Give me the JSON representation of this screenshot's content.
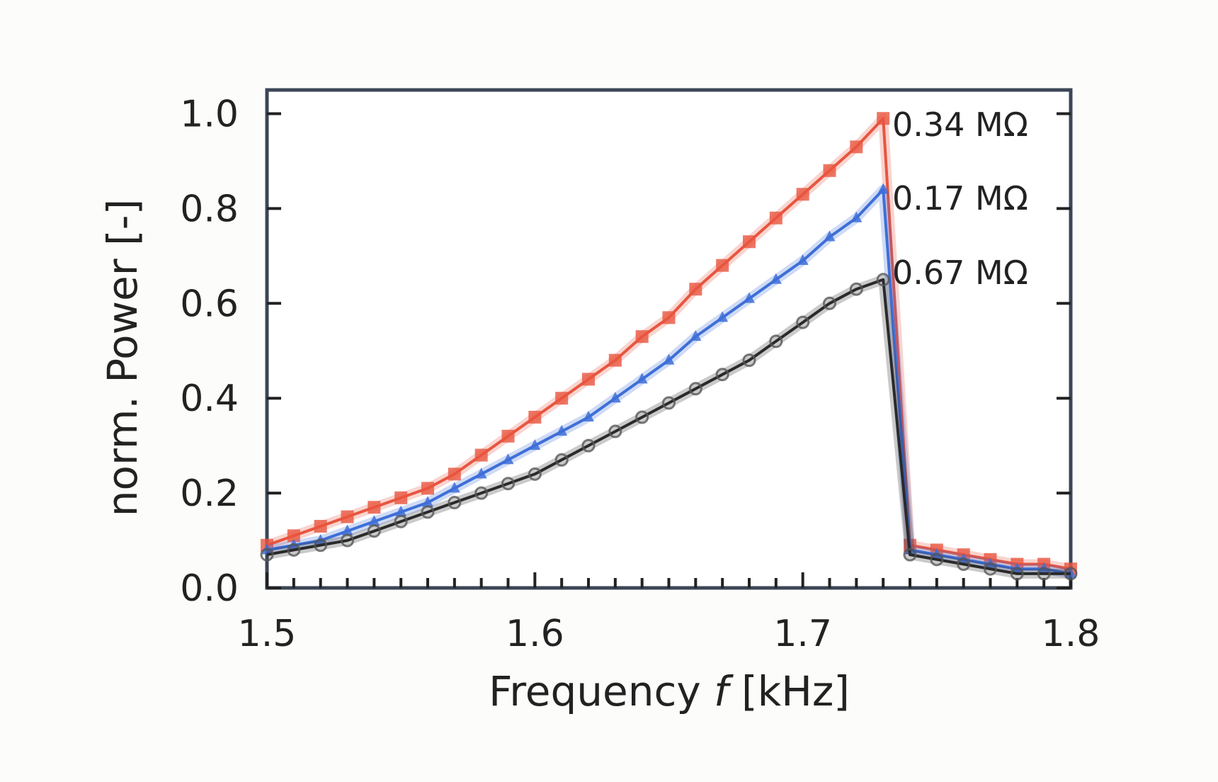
{
  "chart_data": {
    "type": "line",
    "title": "",
    "xlabel_prefix": "Frequency ",
    "xlabel_var": "f",
    "xlabel_unit": " [kHz]",
    "ylabel": "norm. Power [-]",
    "xlim": [
      1.5,
      1.8
    ],
    "ylim": [
      0.0,
      1.05
    ],
    "xticks": [
      1.5,
      1.6,
      1.7,
      1.8
    ],
    "xtick_labels": [
      "1.5",
      "1.6",
      "1.7",
      "1.8"
    ],
    "yticks": [
      0.0,
      0.2,
      0.4,
      0.6,
      0.8,
      1.0
    ],
    "ytick_labels": [
      "0.0",
      "0.2",
      "0.4",
      "0.6",
      "0.8",
      "1.0"
    ],
    "grid": false,
    "legend": "inline labels right of curves",
    "series": [
      {
        "name": "0.34 MΩ",
        "color": "#e8553f",
        "marker": "square",
        "x": [
          1.5,
          1.51,
          1.52,
          1.53,
          1.54,
          1.55,
          1.56,
          1.57,
          1.58,
          1.59,
          1.6,
          1.61,
          1.62,
          1.63,
          1.64,
          1.65,
          1.66,
          1.67,
          1.68,
          1.69,
          1.7,
          1.71,
          1.72,
          1.73,
          1.74,
          1.75,
          1.76,
          1.77,
          1.78,
          1.79,
          1.8
        ],
        "y": [
          0.09,
          0.11,
          0.13,
          0.15,
          0.17,
          0.19,
          0.21,
          0.24,
          0.28,
          0.32,
          0.36,
          0.4,
          0.44,
          0.48,
          0.53,
          0.57,
          0.63,
          0.68,
          0.73,
          0.78,
          0.83,
          0.88,
          0.93,
          0.99,
          0.09,
          0.08,
          0.07,
          0.06,
          0.05,
          0.05,
          0.04
        ]
      },
      {
        "name": "0.17 MΩ",
        "color": "#3e6fd8",
        "marker": "triangle",
        "x": [
          1.5,
          1.51,
          1.52,
          1.53,
          1.54,
          1.55,
          1.56,
          1.57,
          1.58,
          1.59,
          1.6,
          1.61,
          1.62,
          1.63,
          1.64,
          1.65,
          1.66,
          1.67,
          1.68,
          1.69,
          1.7,
          1.71,
          1.72,
          1.73,
          1.74,
          1.75,
          1.76,
          1.77,
          1.78,
          1.79,
          1.8
        ],
        "y": [
          0.08,
          0.09,
          0.1,
          0.12,
          0.14,
          0.16,
          0.18,
          0.21,
          0.24,
          0.27,
          0.3,
          0.33,
          0.36,
          0.4,
          0.44,
          0.48,
          0.53,
          0.57,
          0.61,
          0.65,
          0.69,
          0.74,
          0.78,
          0.84,
          0.08,
          0.07,
          0.06,
          0.05,
          0.04,
          0.04,
          0.03
        ]
      },
      {
        "name": "0.67 MΩ",
        "color": "#2a2a2a",
        "marker": "circle",
        "x": [
          1.5,
          1.51,
          1.52,
          1.53,
          1.54,
          1.55,
          1.56,
          1.57,
          1.58,
          1.59,
          1.6,
          1.61,
          1.62,
          1.63,
          1.64,
          1.65,
          1.66,
          1.67,
          1.68,
          1.69,
          1.7,
          1.71,
          1.72,
          1.73,
          1.74,
          1.75,
          1.76,
          1.77,
          1.78,
          1.79,
          1.8
        ],
        "y": [
          0.07,
          0.08,
          0.09,
          0.1,
          0.12,
          0.14,
          0.16,
          0.18,
          0.2,
          0.22,
          0.24,
          0.27,
          0.3,
          0.33,
          0.36,
          0.39,
          0.42,
          0.45,
          0.48,
          0.52,
          0.56,
          0.6,
          0.63,
          0.65,
          0.07,
          0.06,
          0.05,
          0.04,
          0.03,
          0.03,
          0.03
        ]
      }
    ]
  }
}
